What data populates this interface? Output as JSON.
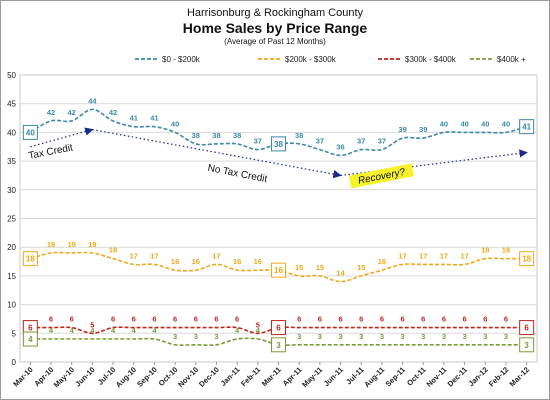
{
  "chart_data": {
    "type": "line",
    "title_line1": "Harrisonburg & Rockingham County",
    "title": "Home Sales by Price Range",
    "subtitle": "(Average of Past 12 Months)",
    "xlabel": "",
    "ylabel": "",
    "ylim": [
      0,
      50
    ],
    "yticks": [
      0,
      5,
      10,
      15,
      20,
      25,
      30,
      35,
      40,
      45,
      50
    ],
    "grid": true,
    "legend_position": "top",
    "categories": [
      "Mar-10",
      "Apr-10",
      "May-10",
      "Jun-10",
      "Jul-10",
      "Aug-10",
      "Sep-10",
      "Oct-10",
      "Nov-10",
      "Dec-10",
      "Jan-11",
      "Feb-11",
      "Mar-11",
      "Apr-11",
      "May-11",
      "Jun-11",
      "Jul-11",
      "Aug-11",
      "Sep-11",
      "Oct-11",
      "Nov-11",
      "Dec-11",
      "Jan-12",
      "Feb-12",
      "Mar-12"
    ],
    "series": [
      {
        "name": "$0 - $200k",
        "color": "#3a8aa6",
        "values": [
          40,
          42,
          42,
          44,
          42,
          41,
          41,
          40,
          38,
          38,
          38,
          37,
          38,
          38,
          37,
          36,
          37,
          37,
          39,
          39,
          40,
          40,
          40,
          40,
          41
        ]
      },
      {
        "name": "$200k - $300k",
        "color": "#f0a81a",
        "values": [
          18,
          19,
          19,
          19,
          18,
          17,
          17,
          16,
          16,
          17,
          16,
          16,
          16,
          15,
          15,
          14,
          15,
          16,
          17,
          17,
          17,
          17,
          18,
          18,
          18
        ]
      },
      {
        "name": "$300k - $400k",
        "color": "#c0281e",
        "values": [
          6,
          6,
          6,
          5,
          6,
          6,
          6,
          6,
          6,
          6,
          6,
          5,
          6,
          6,
          6,
          6,
          6,
          6,
          6,
          6,
          6,
          6,
          6,
          6,
          6
        ]
      },
      {
        "name": "$400k +",
        "color": "#7a9a35",
        "values": [
          4,
          4,
          4,
          4,
          4,
          4,
          4,
          3,
          3,
          3,
          4,
          4,
          3,
          3,
          3,
          3,
          3,
          3,
          3,
          3,
          3,
          3,
          3,
          3,
          3
        ]
      }
    ],
    "annotations": [
      {
        "text": "Tax Credit",
        "category": "Apr-10",
        "y": 36.3,
        "rotate": -11
      },
      {
        "text": "No Tax Credit",
        "category": "Jan-11",
        "y": 32.5,
        "rotate": 11
      },
      {
        "text": "Recovery?",
        "category": "Aug-11",
        "y": 32.0,
        "rotate": -11,
        "highlight": "#f5f22a"
      }
    ],
    "trend_arrows": [
      {
        "from": {
          "category": "Mar-10",
          "y": 37.5
        },
        "to": {
          "category": "Jun-10",
          "y": 40.5
        }
      },
      {
        "from": {
          "category": "Jun-10",
          "y": 40.5
        },
        "to": {
          "category": "Jun-11",
          "y": 32.5
        }
      },
      {
        "from": {
          "category": "Jun-11",
          "y": 32.5
        },
        "to": {
          "category": "Mar-12",
          "y": 36.5
        }
      }
    ]
  }
}
